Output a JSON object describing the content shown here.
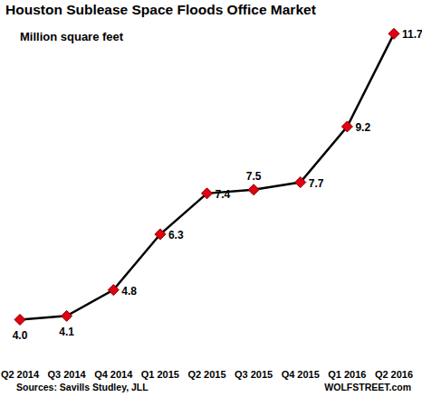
{
  "chart_data": {
    "type": "line",
    "title": "Houston Sublease Space Floods Office Market",
    "subtitle": "Million square feet",
    "source": "Sources: Savills Studley, JLL",
    "credit": "WOLFSTREET.com",
    "categories": [
      "Q2 2014",
      "Q3 2014",
      "Q4 2014",
      "Q1 2015",
      "Q2 2015",
      "Q3 2015",
      "Q4 2015",
      "Q1 2016",
      "Q2 2016"
    ],
    "values": [
      4.0,
      4.1,
      4.8,
      6.3,
      7.4,
      7.5,
      7.7,
      9.2,
      11.7
    ],
    "value_labels": [
      "4.0",
      "4.1",
      "4.8",
      "6.3",
      "7.4",
      "7.5",
      "7.7",
      "9.2",
      "11.7"
    ],
    "color": "#000000",
    "marker": "diamond",
    "ylim": [
      3.5,
      12
    ],
    "grid": false,
    "data_labels": true,
    "tick_labels": "x"
  }
}
